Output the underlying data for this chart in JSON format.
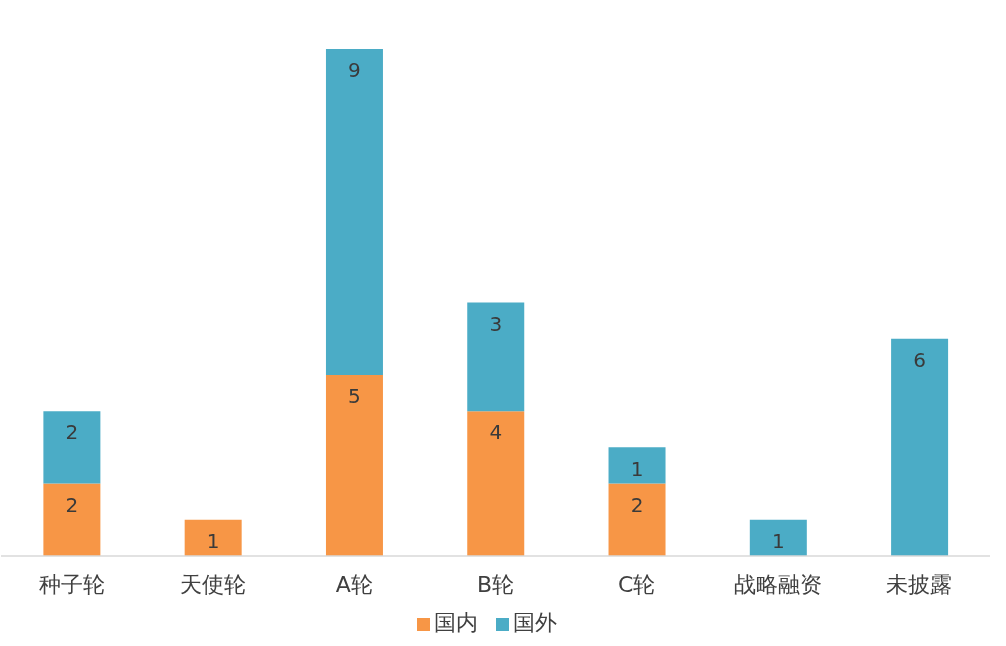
{
  "chart_data": {
    "type": "bar",
    "stacked": true,
    "data_labels": true,
    "legend": "bottom",
    "grid": false,
    "categories": [
      "种子轮",
      "天使轮",
      "A轮",
      "B轮",
      "C轮",
      "战略融资",
      "未披露"
    ],
    "series": [
      {
        "name": "国内",
        "color": "#f79646",
        "values": [
          2,
          1,
          5,
          4,
          2,
          null,
          null
        ]
      },
      {
        "name": "国外",
        "color": "#4bacc6",
        "values": [
          2,
          null,
          9,
          3,
          1,
          1,
          6
        ]
      }
    ]
  }
}
